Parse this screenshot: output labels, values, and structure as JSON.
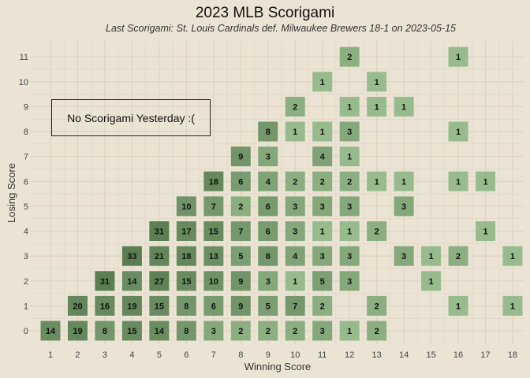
{
  "chart_data": {
    "type": "heatmap",
    "title": "2023 MLB Scorigami",
    "subtitle": "Last Scorigami: St. Louis Cardinals def. Milwaukee Brewers 18-1 on 2023-05-15",
    "xlabel": "Winning Score",
    "ylabel": "Losing Score",
    "x_ticks": [
      "1",
      "2",
      "3",
      "4",
      "5",
      "6",
      "7",
      "8",
      "9",
      "10",
      "11",
      "12",
      "13",
      "14",
      "15",
      "16",
      "17",
      "18"
    ],
    "y_ticks": [
      "0",
      "1",
      "2",
      "3",
      "4",
      "5",
      "6",
      "7",
      "8",
      "9",
      "10",
      "11"
    ],
    "xlim": [
      1,
      18
    ],
    "ylim": [
      0,
      11
    ],
    "annotation": "No Scorigami Yesterday :(",
    "grid": true,
    "cells": [
      {
        "w": 1,
        "l": 0,
        "n": 14
      },
      {
        "w": 2,
        "l": 0,
        "n": 19
      },
      {
        "w": 3,
        "l": 0,
        "n": 8
      },
      {
        "w": 4,
        "l": 0,
        "n": 15
      },
      {
        "w": 5,
        "l": 0,
        "n": 14
      },
      {
        "w": 6,
        "l": 0,
        "n": 8
      },
      {
        "w": 7,
        "l": 0,
        "n": 3
      },
      {
        "w": 8,
        "l": 0,
        "n": 2
      },
      {
        "w": 9,
        "l": 0,
        "n": 2
      },
      {
        "w": 10,
        "l": 0,
        "n": 2
      },
      {
        "w": 11,
        "l": 0,
        "n": 3
      },
      {
        "w": 12,
        "l": 0,
        "n": 1
      },
      {
        "w": 13,
        "l": 0,
        "n": 2
      },
      {
        "w": 2,
        "l": 1,
        "n": 20
      },
      {
        "w": 3,
        "l": 1,
        "n": 16
      },
      {
        "w": 4,
        "l": 1,
        "n": 19
      },
      {
        "w": 5,
        "l": 1,
        "n": 15
      },
      {
        "w": 6,
        "l": 1,
        "n": 8
      },
      {
        "w": 7,
        "l": 1,
        "n": 6
      },
      {
        "w": 8,
        "l": 1,
        "n": 9
      },
      {
        "w": 9,
        "l": 1,
        "n": 5
      },
      {
        "w": 10,
        "l": 1,
        "n": 7
      },
      {
        "w": 11,
        "l": 1,
        "n": 2
      },
      {
        "w": 13,
        "l": 1,
        "n": 2
      },
      {
        "w": 16,
        "l": 1,
        "n": 1
      },
      {
        "w": 18,
        "l": 1,
        "n": 1
      },
      {
        "w": 3,
        "l": 2,
        "n": 31
      },
      {
        "w": 4,
        "l": 2,
        "n": 14
      },
      {
        "w": 5,
        "l": 2,
        "n": 27
      },
      {
        "w": 6,
        "l": 2,
        "n": 15
      },
      {
        "w": 7,
        "l": 2,
        "n": 10
      },
      {
        "w": 8,
        "l": 2,
        "n": 9
      },
      {
        "w": 9,
        "l": 2,
        "n": 3
      },
      {
        "w": 10,
        "l": 2,
        "n": 1
      },
      {
        "w": 11,
        "l": 2,
        "n": 5
      },
      {
        "w": 12,
        "l": 2,
        "n": 3
      },
      {
        "w": 15,
        "l": 2,
        "n": 1
      },
      {
        "w": 4,
        "l": 3,
        "n": 33
      },
      {
        "w": 5,
        "l": 3,
        "n": 21
      },
      {
        "w": 6,
        "l": 3,
        "n": 18
      },
      {
        "w": 7,
        "l": 3,
        "n": 13
      },
      {
        "w": 8,
        "l": 3,
        "n": 5
      },
      {
        "w": 9,
        "l": 3,
        "n": 8
      },
      {
        "w": 10,
        "l": 3,
        "n": 4
      },
      {
        "w": 11,
        "l": 3,
        "n": 3
      },
      {
        "w": 12,
        "l": 3,
        "n": 3
      },
      {
        "w": 14,
        "l": 3,
        "n": 3
      },
      {
        "w": 15,
        "l": 3,
        "n": 1
      },
      {
        "w": 16,
        "l": 3,
        "n": 2
      },
      {
        "w": 18,
        "l": 3,
        "n": 1
      },
      {
        "w": 5,
        "l": 4,
        "n": 31
      },
      {
        "w": 6,
        "l": 4,
        "n": 17
      },
      {
        "w": 7,
        "l": 4,
        "n": 15
      },
      {
        "w": 8,
        "l": 4,
        "n": 7
      },
      {
        "w": 9,
        "l": 4,
        "n": 6
      },
      {
        "w": 10,
        "l": 4,
        "n": 3
      },
      {
        "w": 11,
        "l": 4,
        "n": 1
      },
      {
        "w": 12,
        "l": 4,
        "n": 1
      },
      {
        "w": 13,
        "l": 4,
        "n": 2
      },
      {
        "w": 17,
        "l": 4,
        "n": 1
      },
      {
        "w": 6,
        "l": 5,
        "n": 10
      },
      {
        "w": 7,
        "l": 5,
        "n": 7
      },
      {
        "w": 8,
        "l": 5,
        "n": 2
      },
      {
        "w": 9,
        "l": 5,
        "n": 6
      },
      {
        "w": 10,
        "l": 5,
        "n": 3
      },
      {
        "w": 11,
        "l": 5,
        "n": 3
      },
      {
        "w": 12,
        "l": 5,
        "n": 3
      },
      {
        "w": 14,
        "l": 5,
        "n": 3
      },
      {
        "w": 7,
        "l": 6,
        "n": 18
      },
      {
        "w": 8,
        "l": 6,
        "n": 6
      },
      {
        "w": 9,
        "l": 6,
        "n": 4
      },
      {
        "w": 10,
        "l": 6,
        "n": 2
      },
      {
        "w": 11,
        "l": 6,
        "n": 2
      },
      {
        "w": 12,
        "l": 6,
        "n": 2
      },
      {
        "w": 13,
        "l": 6,
        "n": 1
      },
      {
        "w": 14,
        "l": 6,
        "n": 1
      },
      {
        "w": 16,
        "l": 6,
        "n": 1
      },
      {
        "w": 17,
        "l": 6,
        "n": 1
      },
      {
        "w": 8,
        "l": 7,
        "n": 9
      },
      {
        "w": 9,
        "l": 7,
        "n": 3
      },
      {
        "w": 11,
        "l": 7,
        "n": 4
      },
      {
        "w": 12,
        "l": 7,
        "n": 1
      },
      {
        "w": 9,
        "l": 8,
        "n": 8
      },
      {
        "w": 10,
        "l": 8,
        "n": 1
      },
      {
        "w": 11,
        "l": 8,
        "n": 1
      },
      {
        "w": 12,
        "l": 8,
        "n": 3
      },
      {
        "w": 16,
        "l": 8,
        "n": 1
      },
      {
        "w": 10,
        "l": 9,
        "n": 2
      },
      {
        "w": 12,
        "l": 9,
        "n": 1
      },
      {
        "w": 13,
        "l": 9,
        "n": 1
      },
      {
        "w": 14,
        "l": 9,
        "n": 1
      },
      {
        "w": 11,
        "l": 10,
        "n": 1
      },
      {
        "w": 13,
        "l": 10,
        "n": 1
      },
      {
        "w": 12,
        "l": 11,
        "n": 2
      },
      {
        "w": 16,
        "l": 11,
        "n": 1
      }
    ],
    "colors": {
      "background": "#ebe3d3",
      "grid": "#dcd2bc",
      "low": "#98bb8e",
      "high": "#5a7d52",
      "text": "#111111"
    }
  }
}
